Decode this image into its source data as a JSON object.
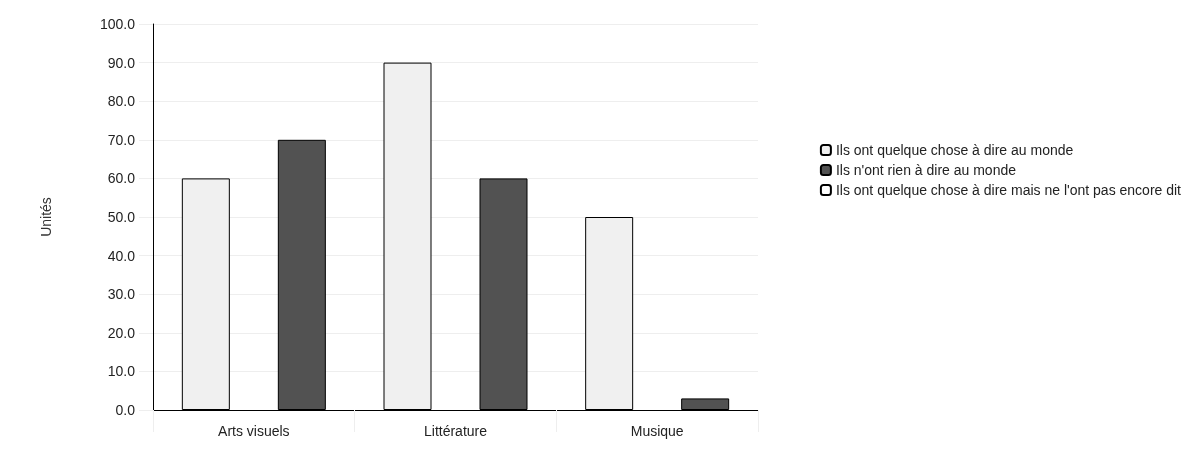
{
  "chart_data": {
    "type": "bar",
    "ylabel": "Unités",
    "categories": [
      "Arts visuels",
      "Littérature",
      "Musique"
    ],
    "series": [
      {
        "name": "Ils ont quelque chose à dire au monde",
        "color": "#f0f0f0",
        "values": [
          60,
          90,
          50
        ]
      },
      {
        "name": "Ils n'ont rien à dire au monde",
        "color": "#525252",
        "values": [
          70,
          60,
          3
        ]
      },
      {
        "name": "Ils ont quelque chose à dire mais ne l'ont pas encore dit",
        "values": [
          null,
          null,
          null
        ]
      }
    ],
    "ylim": [
      0,
      100
    ],
    "yticks": [
      {
        "value": 0,
        "label": "0.0"
      },
      {
        "value": 10,
        "label": "10.0"
      },
      {
        "value": 20,
        "label": "20.0"
      },
      {
        "value": 30,
        "label": "30.0"
      },
      {
        "value": 40,
        "label": "40.0"
      },
      {
        "value": 50,
        "label": "50.0"
      },
      {
        "value": 60,
        "label": "60.0"
      },
      {
        "value": 70,
        "label": "70.0"
      },
      {
        "value": 80,
        "label": "80.0"
      },
      {
        "value": 90,
        "label": "90.0"
      },
      {
        "value": 100,
        "label": "100.0"
      }
    ],
    "grid": "y",
    "legend": "right"
  }
}
